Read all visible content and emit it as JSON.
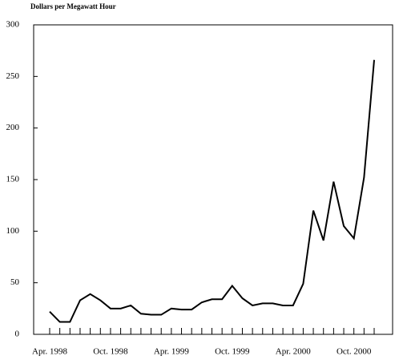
{
  "chart_data": {
    "type": "line",
    "y_label": "Dollars per Megawatt Hour",
    "categories": [
      "Apr. 1998",
      null,
      null,
      null,
      null,
      null,
      "Oct. 1998",
      null,
      null,
      null,
      null,
      null,
      "Apr. 1999",
      null,
      null,
      null,
      null,
      null,
      "Oct. 1999",
      null,
      null,
      null,
      null,
      null,
      "Apr. 2000",
      null,
      null,
      null,
      null,
      null,
      "Oct. 2000",
      null,
      null
    ],
    "values": [
      22,
      12,
      12,
      33,
      39,
      33,
      25,
      25,
      28,
      20,
      19,
      19,
      25,
      24,
      24,
      31,
      34,
      34,
      47,
      35,
      28,
      30,
      30,
      28,
      28,
      49,
      120,
      91,
      148,
      105,
      93,
      152,
      266
    ],
    "color": "#000000",
    "ylim": [
      0,
      300
    ],
    "yticks": [
      0,
      50,
      100,
      150,
      200,
      250,
      300
    ],
    "grid": false
  }
}
